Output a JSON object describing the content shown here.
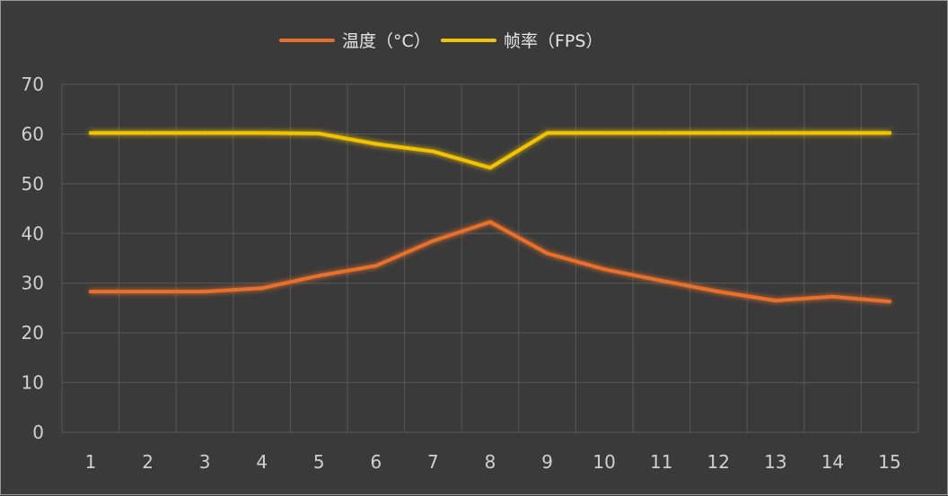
{
  "chart_data": {
    "type": "line",
    "x": [
      1,
      2,
      3,
      4,
      5,
      6,
      7,
      8,
      9,
      10,
      11,
      12,
      13,
      14,
      15
    ],
    "series": [
      {
        "name": "温度（°C）",
        "color": "#e8702a",
        "values": [
          28.3,
          28.3,
          28.3,
          29.0,
          31.5,
          33.5,
          38.5,
          42.3,
          36.0,
          32.8,
          30.5,
          28.3,
          26.5,
          27.3,
          26.3
        ]
      },
      {
        "name": "帧率（FPS）",
        "color": "#f2c300",
        "values": [
          60.2,
          60.2,
          60.2,
          60.2,
          60.1,
          58.0,
          56.5,
          53.2,
          60.2,
          60.2,
          60.2,
          60.2,
          60.2,
          60.2,
          60.2
        ]
      }
    ],
    "ylim": [
      0,
      70
    ],
    "yticks": [
      0,
      10,
      20,
      30,
      40,
      50,
      60,
      70
    ],
    "xticks": [
      "1",
      "2",
      "3",
      "4",
      "5",
      "6",
      "7",
      "8",
      "9",
      "10",
      "11",
      "12",
      "13",
      "14",
      "15"
    ],
    "grid": true,
    "legend_position": "top-center",
    "background": "#3a3a3a"
  }
}
